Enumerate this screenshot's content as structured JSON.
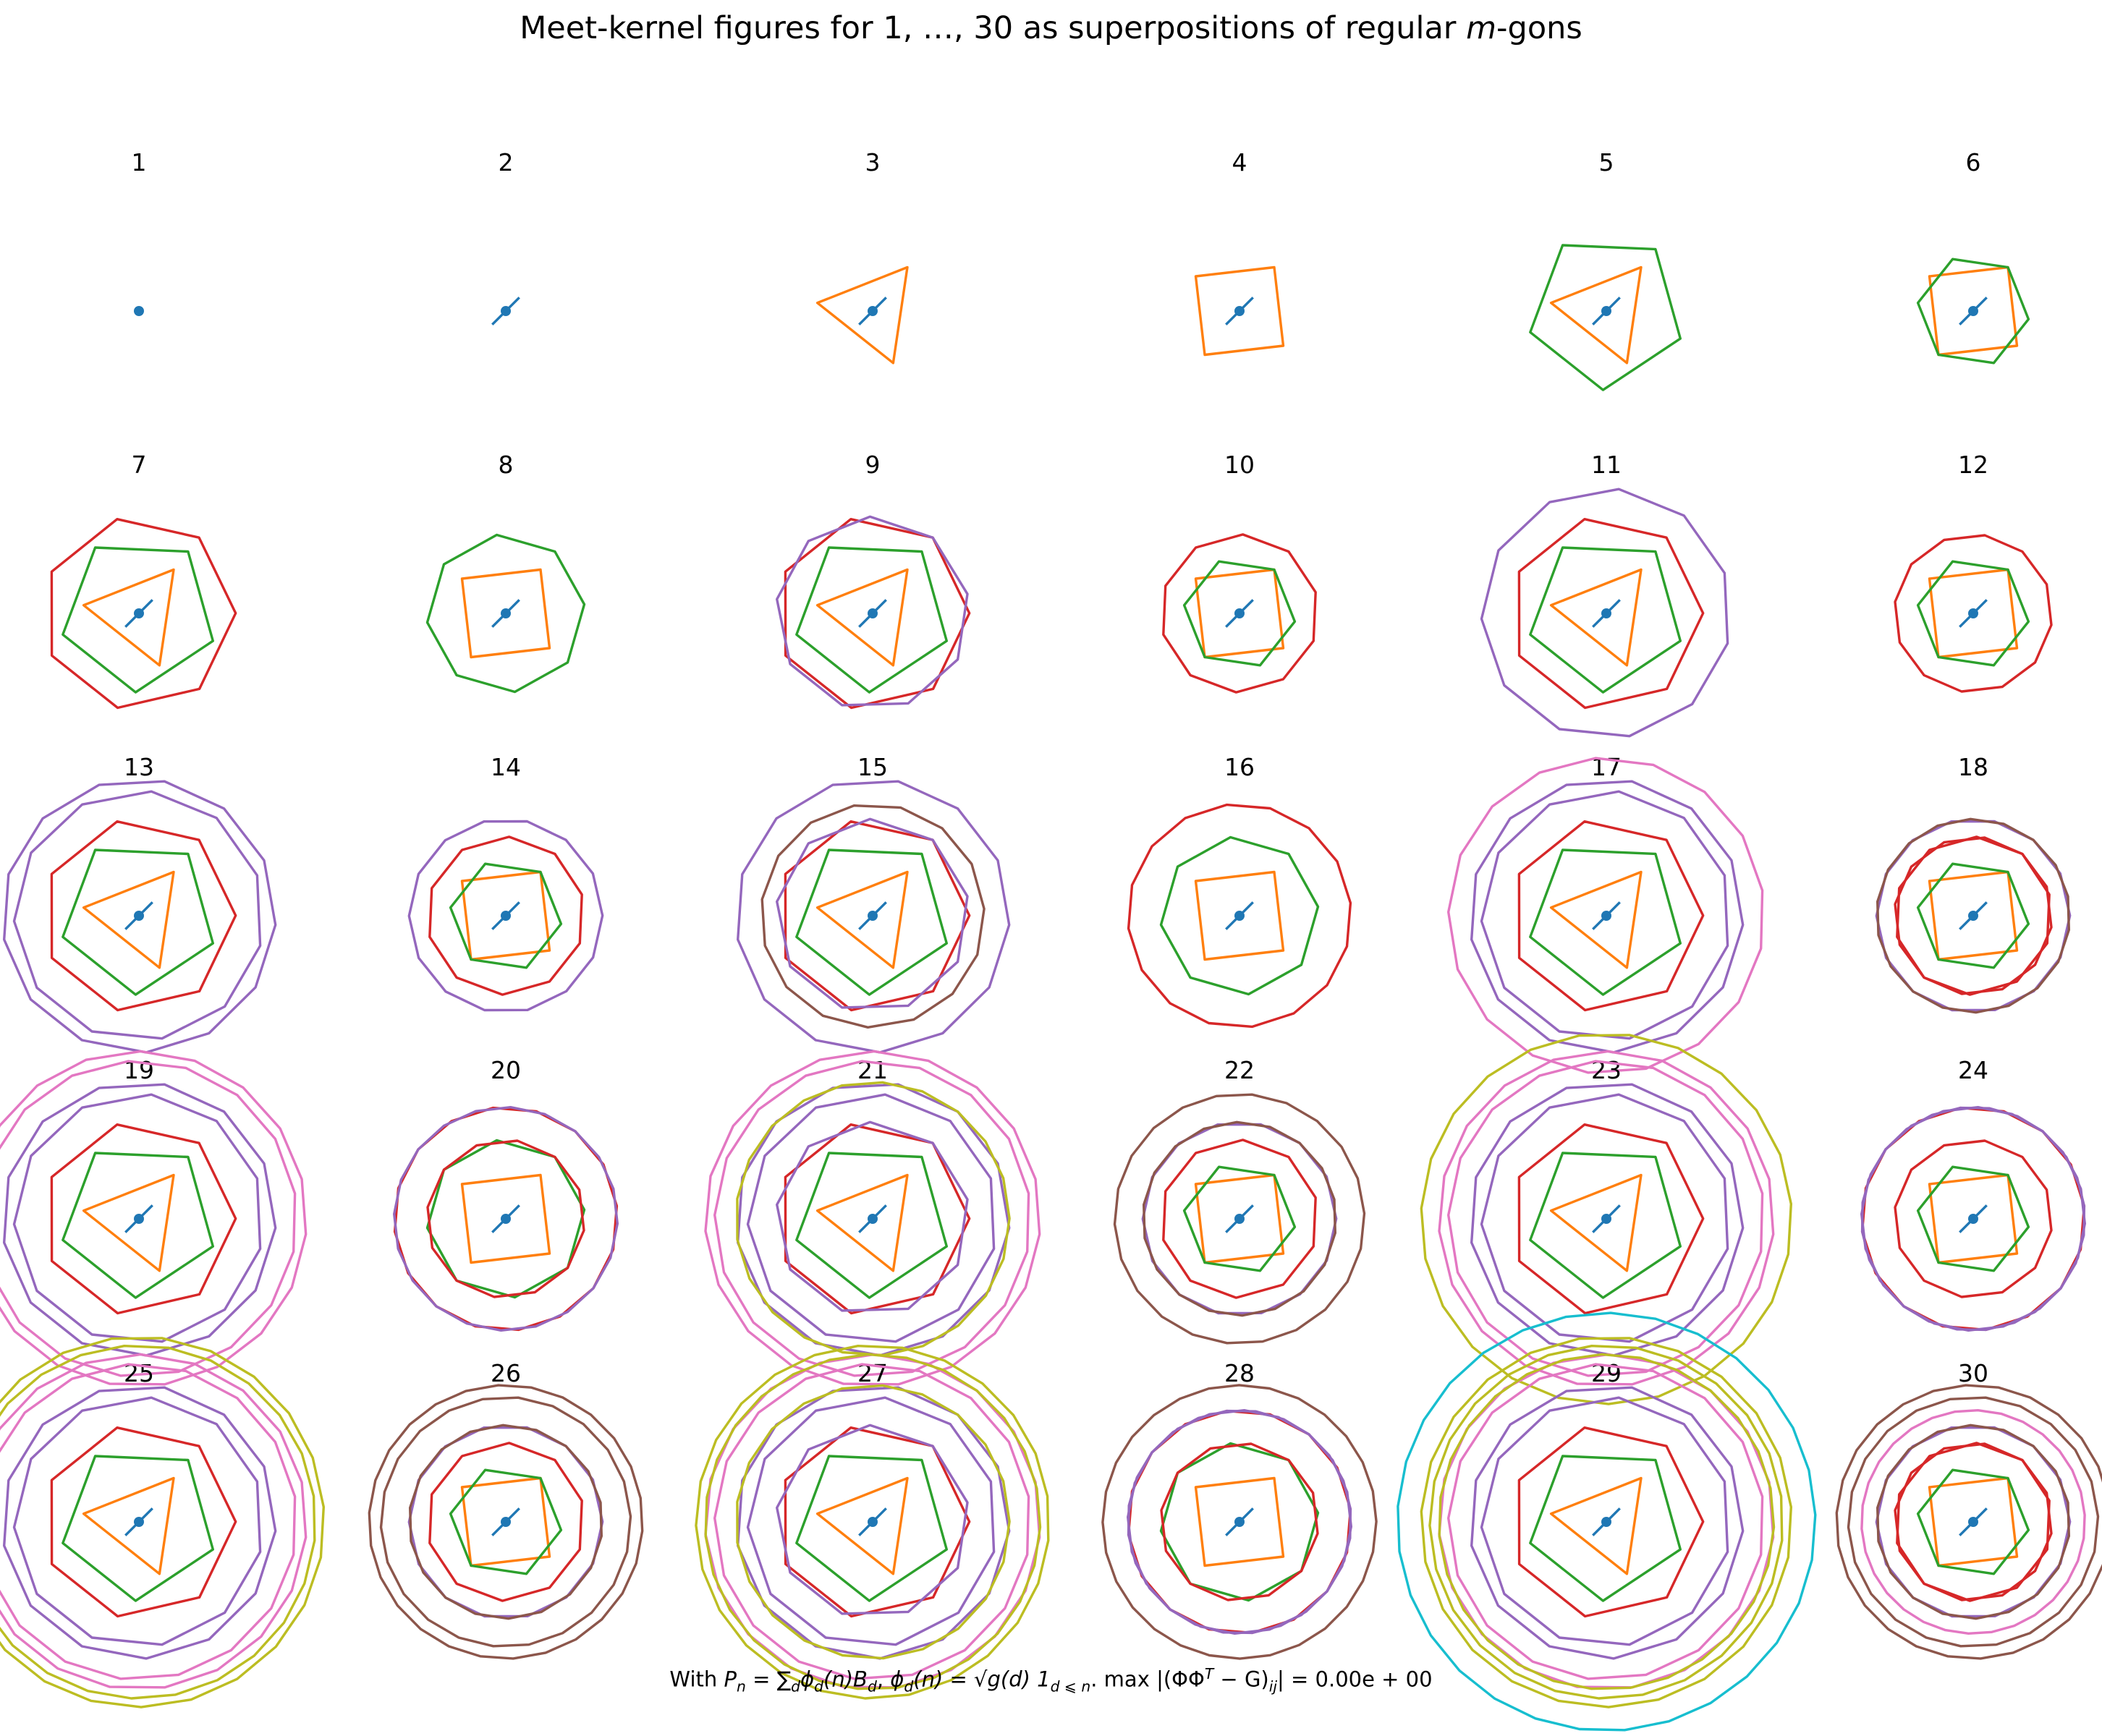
{
  "title": {
    "prefix": "Meet-kernel figures for 1, …, 30 as superpositions of regular ",
    "italic": "m",
    "suffix": "-gons"
  },
  "footer": {
    "with": "With ",
    "Pn": "P",
    "Pn_sub": "n",
    "eq1": " = ∑",
    "sum_sub": "d",
    "phi_d_n": "ϕ",
    "phi_sub": "d",
    "n_part": "(n)B",
    "B_sub": "d",
    "sep1": ",  ",
    "phi2": "ϕ",
    "phi2_sub": "d",
    "def": "(n) = √g(d) 1",
    "ind_sub": "d ⩽ n",
    "sep2": ".  max |(ΦΦ",
    "T": "T",
    "tail": " − G)",
    "ij": "ij",
    "result": "| = 0.00e + 00"
  },
  "colors": {
    "1": "#1f77b4",
    "2": "#1f77b4",
    "3": "#ff7f0e",
    "4": "#ff7f0e",
    "5": "#2ca02c",
    "6": "#2ca02c",
    "7": "#d62728",
    "8": "#2ca02c",
    "9": "#9467bd",
    "10": "#d62728",
    "11": "#9467bd",
    "12": "#d62728",
    "13": "#9467bd",
    "14": "#9467bd",
    "15": "#8c564b",
    "16": "#d62728",
    "17": "#e377c2",
    "18": "#8c564b",
    "19": "#e377c2",
    "20": "#9467bd",
    "21": "#bcbd22",
    "22": "#8c564b",
    "23": "#bcbd22",
    "24": "#9467bd",
    "25": "#bcbd22",
    "26": "#8c564b",
    "27": "#bcbd22",
    "28": "#8c564b",
    "29": "#17becf",
    "30": "#e377c2"
  },
  "panels": [
    {
      "label": "1",
      "gons": [
        1
      ]
    },
    {
      "label": "2",
      "gons": [
        1,
        2
      ]
    },
    {
      "label": "3",
      "gons": [
        1,
        2,
        3
      ]
    },
    {
      "label": "4",
      "gons": [
        1,
        2,
        4
      ]
    },
    {
      "label": "5",
      "gons": [
        1,
        2,
        3,
        5
      ]
    },
    {
      "label": "6",
      "gons": [
        1,
        2,
        4,
        6
      ]
    },
    {
      "label": "7",
      "gons": [
        1,
        2,
        3,
        5,
        7
      ]
    },
    {
      "label": "8",
      "gons": [
        1,
        2,
        4,
        8
      ]
    },
    {
      "label": "9",
      "gons": [
        1,
        2,
        3,
        5,
        7,
        9
      ]
    },
    {
      "label": "10",
      "gons": [
        1,
        2,
        4,
        6,
        10
      ]
    },
    {
      "label": "11",
      "gons": [
        1,
        2,
        3,
        5,
        7,
        11
      ]
    },
    {
      "label": "12",
      "gons": [
        1,
        2,
        4,
        6,
        12
      ]
    },
    {
      "label": "13",
      "gons": [
        1,
        2,
        3,
        5,
        7,
        11,
        13
      ]
    },
    {
      "label": "14",
      "gons": [
        1,
        2,
        4,
        6,
        10,
        14
      ]
    },
    {
      "label": "15",
      "gons": [
        1,
        2,
        3,
        5,
        7,
        9,
        13,
        15
      ]
    },
    {
      "label": "16",
      "gons": [
        1,
        2,
        4,
        8,
        16
      ]
    },
    {
      "label": "17",
      "gons": [
        1,
        2,
        3,
        5,
        7,
        11,
        13,
        17
      ]
    },
    {
      "label": "18",
      "gons": [
        1,
        2,
        4,
        6,
        10,
        12,
        14,
        18
      ]
    },
    {
      "label": "19",
      "gons": [
        1,
        2,
        3,
        5,
        7,
        11,
        13,
        17,
        19
      ]
    },
    {
      "label": "20",
      "gons": [
        1,
        2,
        4,
        8,
        12,
        16,
        20
      ]
    },
    {
      "label": "21",
      "gons": [
        1,
        2,
        3,
        5,
        7,
        9,
        11,
        13,
        17,
        19,
        21
      ]
    },
    {
      "label": "22",
      "gons": [
        1,
        2,
        4,
        6,
        10,
        14,
        18,
        22
      ]
    },
    {
      "label": "23",
      "gons": [
        1,
        2,
        3,
        5,
        7,
        11,
        13,
        17,
        19,
        23
      ]
    },
    {
      "label": "24",
      "gons": [
        1,
        2,
        4,
        6,
        12,
        16,
        20,
        24
      ]
    },
    {
      "label": "25",
      "gons": [
        1,
        2,
        3,
        5,
        7,
        11,
        13,
        17,
        19,
        23,
        25
      ]
    },
    {
      "label": "26",
      "gons": [
        1,
        2,
        4,
        6,
        10,
        14,
        18,
        22,
        26
      ]
    },
    {
      "label": "27",
      "gons": [
        1,
        2,
        3,
        5,
        7,
        9,
        11,
        13,
        17,
        19,
        21,
        25,
        27
      ]
    },
    {
      "label": "28",
      "gons": [
        1,
        2,
        4,
        8,
        12,
        16,
        20,
        24,
        28
      ]
    },
    {
      "label": "29",
      "gons": [
        1,
        2,
        3,
        5,
        7,
        11,
        13,
        17,
        19,
        23,
        25,
        27,
        29
      ]
    },
    {
      "label": "30",
      "gons": [
        1,
        2,
        4,
        6,
        10,
        12,
        14,
        18,
        22,
        26,
        30
      ]
    }
  ]
}
